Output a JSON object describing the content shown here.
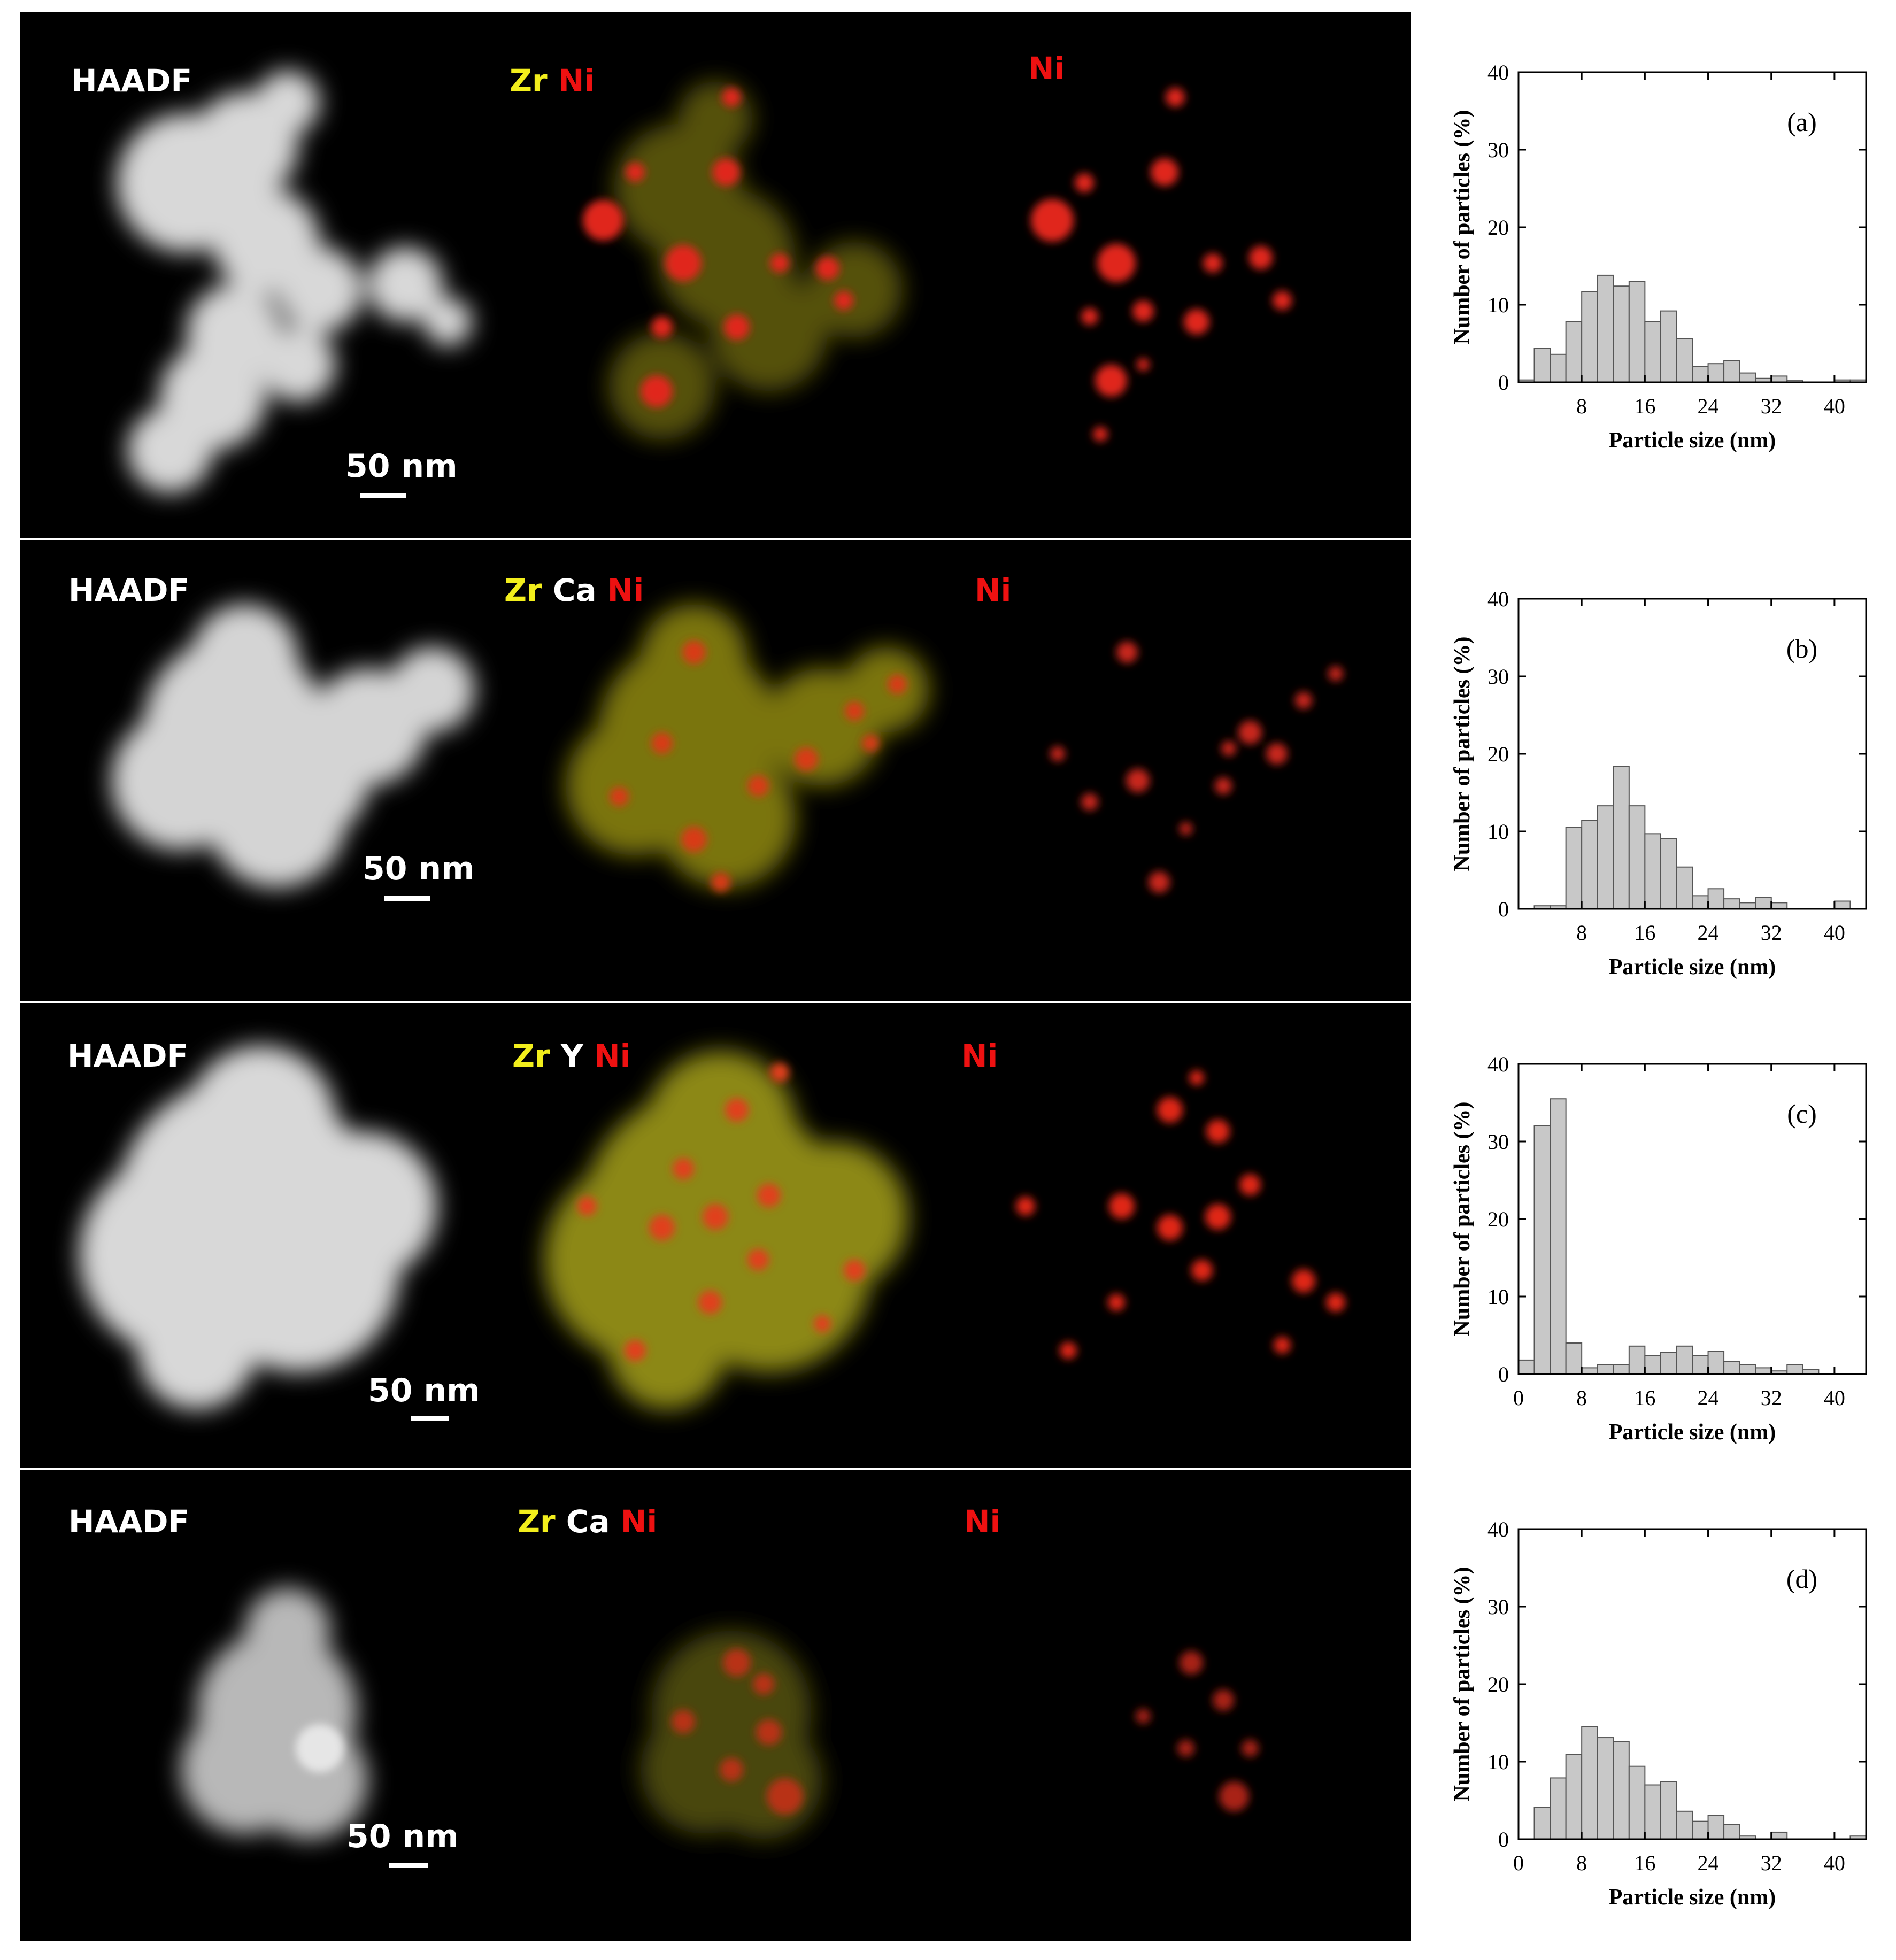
{
  "scale_bar_label": "50 nm",
  "panels": [
    {
      "id": "a",
      "labels": {
        "haadf": "HAADF",
        "zr": "Zr",
        "ni_map": "Ni",
        "ni_only": "Ni"
      },
      "hist_label": "(a)"
    },
    {
      "id": "b",
      "labels": {
        "haadf": "HAADF",
        "zr": "Zr",
        "second": "Ca",
        "ni_map": "Ni",
        "ni_only": "Ni"
      },
      "hist_label": "(b)"
    },
    {
      "id": "c",
      "labels": {
        "haadf": "HAADF",
        "zr": "Zr",
        "second": "Y",
        "ni_map": "Ni",
        "ni_only": "Ni"
      },
      "hist_label": "(c)"
    },
    {
      "id": "d",
      "labels": {
        "haadf": "HAADF",
        "zr": "Zr",
        "second": "Ca",
        "ni_map": "Ni",
        "ni_only": "Ni"
      },
      "hist_label": "(d)"
    }
  ],
  "chart_data": [
    {
      "type": "bar",
      "panel": "(a)",
      "xlabel": "Particle size (nm)",
      "ylabel": "Number of particles (%)",
      "xlim": [
        0,
        44
      ],
      "ylim": [
        0,
        40
      ],
      "xticks": [
        8,
        16,
        24,
        32,
        40
      ],
      "yticks": [
        0,
        10,
        20,
        30,
        40
      ],
      "bin_width": 2,
      "bin_starts": [
        0,
        2,
        4,
        6,
        8,
        10,
        12,
        14,
        16,
        18,
        20,
        22,
        24,
        26,
        28,
        30,
        32,
        34,
        36,
        38,
        40,
        42
      ],
      "values": [
        0.3,
        4.4,
        3.6,
        7.8,
        11.7,
        13.8,
        12.4,
        13.0,
        7.8,
        9.2,
        5.6,
        2.0,
        2.4,
        2.8,
        1.2,
        0.5,
        0.8,
        0.2,
        0,
        0,
        0.3,
        0.3
      ]
    },
    {
      "type": "bar",
      "panel": "(b)",
      "xlabel": "Particle size (nm)",
      "ylabel": "Number of particles (%)",
      "xlim": [
        0,
        44
      ],
      "ylim": [
        0,
        40
      ],
      "xticks": [
        8,
        16,
        24,
        32,
        40
      ],
      "yticks": [
        0,
        10,
        20,
        30,
        40
      ],
      "bin_width": 2,
      "bin_starts": [
        0,
        2,
        4,
        6,
        8,
        10,
        12,
        14,
        16,
        18,
        20,
        22,
        24,
        26,
        28,
        30,
        32,
        34,
        36,
        38,
        40,
        42
      ],
      "values": [
        0,
        0.4,
        0.4,
        10.5,
        11.4,
        13.3,
        18.4,
        13.3,
        9.7,
        9.1,
        5.4,
        1.7,
        2.6,
        1.3,
        0.8,
        1.5,
        0.8,
        0,
        0,
        0,
        1.0,
        0
      ]
    },
    {
      "type": "bar",
      "panel": "(c)",
      "xlabel": "Particle size (nm)",
      "ylabel": "Number of particles (%)",
      "xlim": [
        0,
        44
      ],
      "ylim": [
        0,
        40
      ],
      "xticks": [
        0,
        8,
        16,
        24,
        32,
        40
      ],
      "yticks": [
        0,
        10,
        20,
        30,
        40
      ],
      "bin_width": 2,
      "bin_starts": [
        0,
        2,
        4,
        6,
        8,
        10,
        12,
        14,
        16,
        18,
        20,
        22,
        24,
        26,
        28,
        30,
        32,
        34,
        36,
        38,
        40,
        42
      ],
      "values": [
        1.8,
        32.0,
        35.5,
        4.0,
        0.8,
        1.2,
        1.2,
        3.6,
        2.4,
        2.8,
        3.6,
        2.4,
        2.9,
        1.6,
        1.2,
        0.8,
        0.4,
        1.2,
        0.6,
        0,
        0,
        0
      ]
    },
    {
      "type": "bar",
      "panel": "(d)",
      "xlabel": "Particle size (nm)",
      "ylabel": "Number of particles (%)",
      "xlim": [
        0,
        44
      ],
      "ylim": [
        0,
        40
      ],
      "xticks": [
        0,
        8,
        16,
        24,
        32,
        40
      ],
      "yticks": [
        0,
        10,
        20,
        30,
        40
      ],
      "bin_width": 2,
      "bin_starts": [
        0,
        2,
        4,
        6,
        8,
        10,
        12,
        14,
        16,
        18,
        20,
        22,
        24,
        26,
        28,
        30,
        32,
        34,
        36,
        38,
        40,
        42
      ],
      "values": [
        0,
        4.1,
        7.9,
        10.9,
        14.5,
        13.1,
        12.6,
        9.4,
        7.0,
        7.4,
        3.6,
        2.3,
        3.1,
        1.9,
        0.4,
        0,
        0.9,
        0,
        0,
        0,
        0,
        0.4
      ]
    }
  ]
}
